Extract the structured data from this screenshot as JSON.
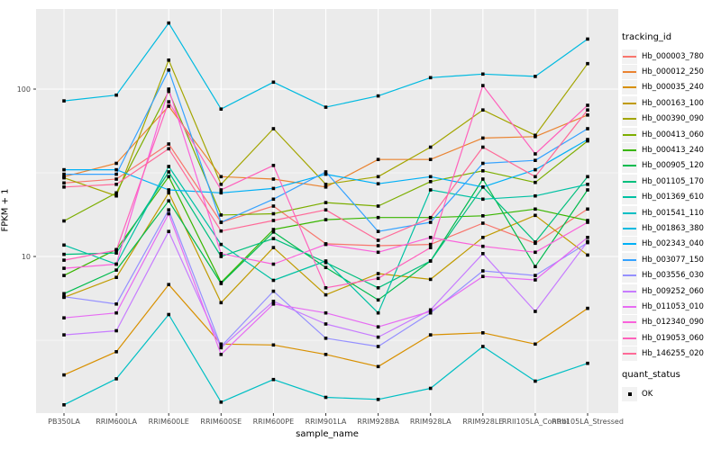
{
  "chart_data": {
    "type": "line",
    "title": "",
    "xlabel": "sample_name",
    "ylabel": "FPKM + 1",
    "y_scale": "log10",
    "y_major_ticks": [
      100,
      10
    ],
    "y_minor_ticks": [
      31.6,
      3.16
    ],
    "grid": true,
    "marker": "black-square",
    "legend_position": "right",
    "legend_title": "tracking_id",
    "legend2_title": "quant_status",
    "legend2_items": [
      {
        "label": "OK"
      }
    ],
    "categories": [
      "PB350LA",
      "RRIM600LA",
      "RRIM600LE",
      "RRIM600SE",
      "RRIM600PE",
      "RRIM901LA",
      "RRIM928BA",
      "RRIM928LA",
      "RRIM928LE",
      "RRII105LA_Control",
      "RRII105LA_Stressed"
    ],
    "series": [
      {
        "name": "Hb_000003_780",
        "color": "#F8766D",
        "values": [
          27.5,
          29,
          47,
          16,
          20,
          11.9,
          11.6,
          11.8,
          15.8,
          12,
          19.2
        ]
      },
      {
        "name": "Hb_000012_250",
        "color": "#EA8331",
        "values": [
          30,
          36,
          79,
          30,
          29,
          26,
          38,
          38,
          51,
          52,
          70
        ]
      },
      {
        "name": "Hb_000035_240",
        "color": "#D89000",
        "values": [
          1.96,
          2.7,
          6.8,
          3,
          2.96,
          2.6,
          2.2,
          3.4,
          3.5,
          3,
          4.9
        ]
      },
      {
        "name": "Hb_000163_100",
        "color": "#C09B00",
        "values": [
          5.7,
          7.5,
          24,
          5.3,
          11.3,
          5.9,
          7.9,
          7.3,
          13,
          17.6,
          10.2
        ]
      },
      {
        "name": "Hb_000390_090",
        "color": "#A3A500",
        "values": [
          29.5,
          23,
          149,
          27,
          58,
          27,
          30,
          45,
          75,
          53,
          142
        ]
      },
      {
        "name": "Hb_000413_060",
        "color": "#7CAE00",
        "values": [
          16.3,
          24,
          97,
          17.7,
          18,
          21,
          20,
          28,
          32.5,
          27.7,
          49
        ]
      },
      {
        "name": "Hb_000413_240",
        "color": "#39B600",
        "values": [
          7.7,
          11,
          30,
          7,
          14.5,
          16.6,
          17.1,
          17.1,
          17.5,
          19.2,
          16.4
        ]
      },
      {
        "name": "Hb_000905_120",
        "color": "#00BB4E",
        "values": [
          6,
          8.3,
          21.5,
          6.9,
          14,
          8.6,
          5.5,
          9.4,
          29,
          8.7,
          25
        ]
      },
      {
        "name": "Hb_001105_170",
        "color": "#00BF7D",
        "values": [
          10.3,
          10.5,
          32,
          10,
          12.8,
          9.2,
          6.5,
          9.4,
          26,
          12.2,
          30
        ]
      },
      {
        "name": "Hb_001369_610",
        "color": "#00C1A3",
        "values": [
          11.7,
          9,
          34.5,
          11.8,
          7.2,
          9.4,
          4.6,
          25,
          22,
          23,
          27
        ]
      },
      {
        "name": "Hb_001541_110",
        "color": "#00BFC4",
        "values": [
          1.3,
          1.86,
          4.5,
          1.35,
          1.84,
          1.44,
          1.4,
          1.63,
          2.9,
          1.8,
          2.3
        ]
      },
      {
        "name": "Hb_001863_380",
        "color": "#00BAE0",
        "values": [
          85,
          92,
          248,
          76,
          110,
          78,
          91,
          117,
          123,
          119,
          199
        ]
      },
      {
        "name": "Hb_002343_040",
        "color": "#00B0F6",
        "values": [
          33,
          33,
          25,
          24,
          25.5,
          31,
          27.2,
          30,
          26,
          33,
          50
        ]
      },
      {
        "name": "Hb_003077_150",
        "color": "#35A2FF",
        "values": [
          31,
          31,
          130,
          16,
          22,
          32,
          14.1,
          16,
          36,
          37.5,
          58
        ]
      },
      {
        "name": "Hb_003556_030",
        "color": "#9590FF",
        "values": [
          5.75,
          5.2,
          19,
          2.9,
          6.2,
          3.25,
          2.9,
          4.6,
          8.2,
          7.7,
          12.1
        ]
      },
      {
        "name": "Hb_009252_060",
        "color": "#C77CFF",
        "values": [
          3.4,
          3.6,
          14.1,
          2.85,
          5.4,
          3.95,
          3.3,
          4.8,
          10.4,
          4.7,
          12.3
        ]
      },
      {
        "name": "Hb_011053_010",
        "color": "#E76BF3",
        "values": [
          4.3,
          4.6,
          18,
          2.6,
          5.2,
          4.6,
          3.8,
          4.7,
          7.6,
          7.25,
          13
        ]
      },
      {
        "name": "Hb_012340_090",
        "color": "#FA62DB",
        "values": [
          8.5,
          9,
          100,
          10.4,
          9,
          11.8,
          10.6,
          13,
          11.5,
          10.6,
          16
        ]
      },
      {
        "name": "Hb_019053_060",
        "color": "#FF62BC",
        "values": [
          9.5,
          10.9,
          84,
          25,
          35,
          6.5,
          7.4,
          11.3,
          105,
          41,
          80
        ]
      },
      {
        "name": "Hb_146255_020",
        "color": "#FF6A98",
        "values": [
          26,
          27,
          44,
          14.2,
          16.4,
          19,
          12.5,
          17,
          45,
          30,
          75
        ]
      }
    ]
  },
  "style": {
    "panel_bg": "#EBEBEB",
    "grid_major": "#FFFFFF",
    "grid_minor": "#FFFFFF",
    "tick_color": "#333333",
    "tick_label_color": "#4D4D4D",
    "point_color": "#000000"
  }
}
